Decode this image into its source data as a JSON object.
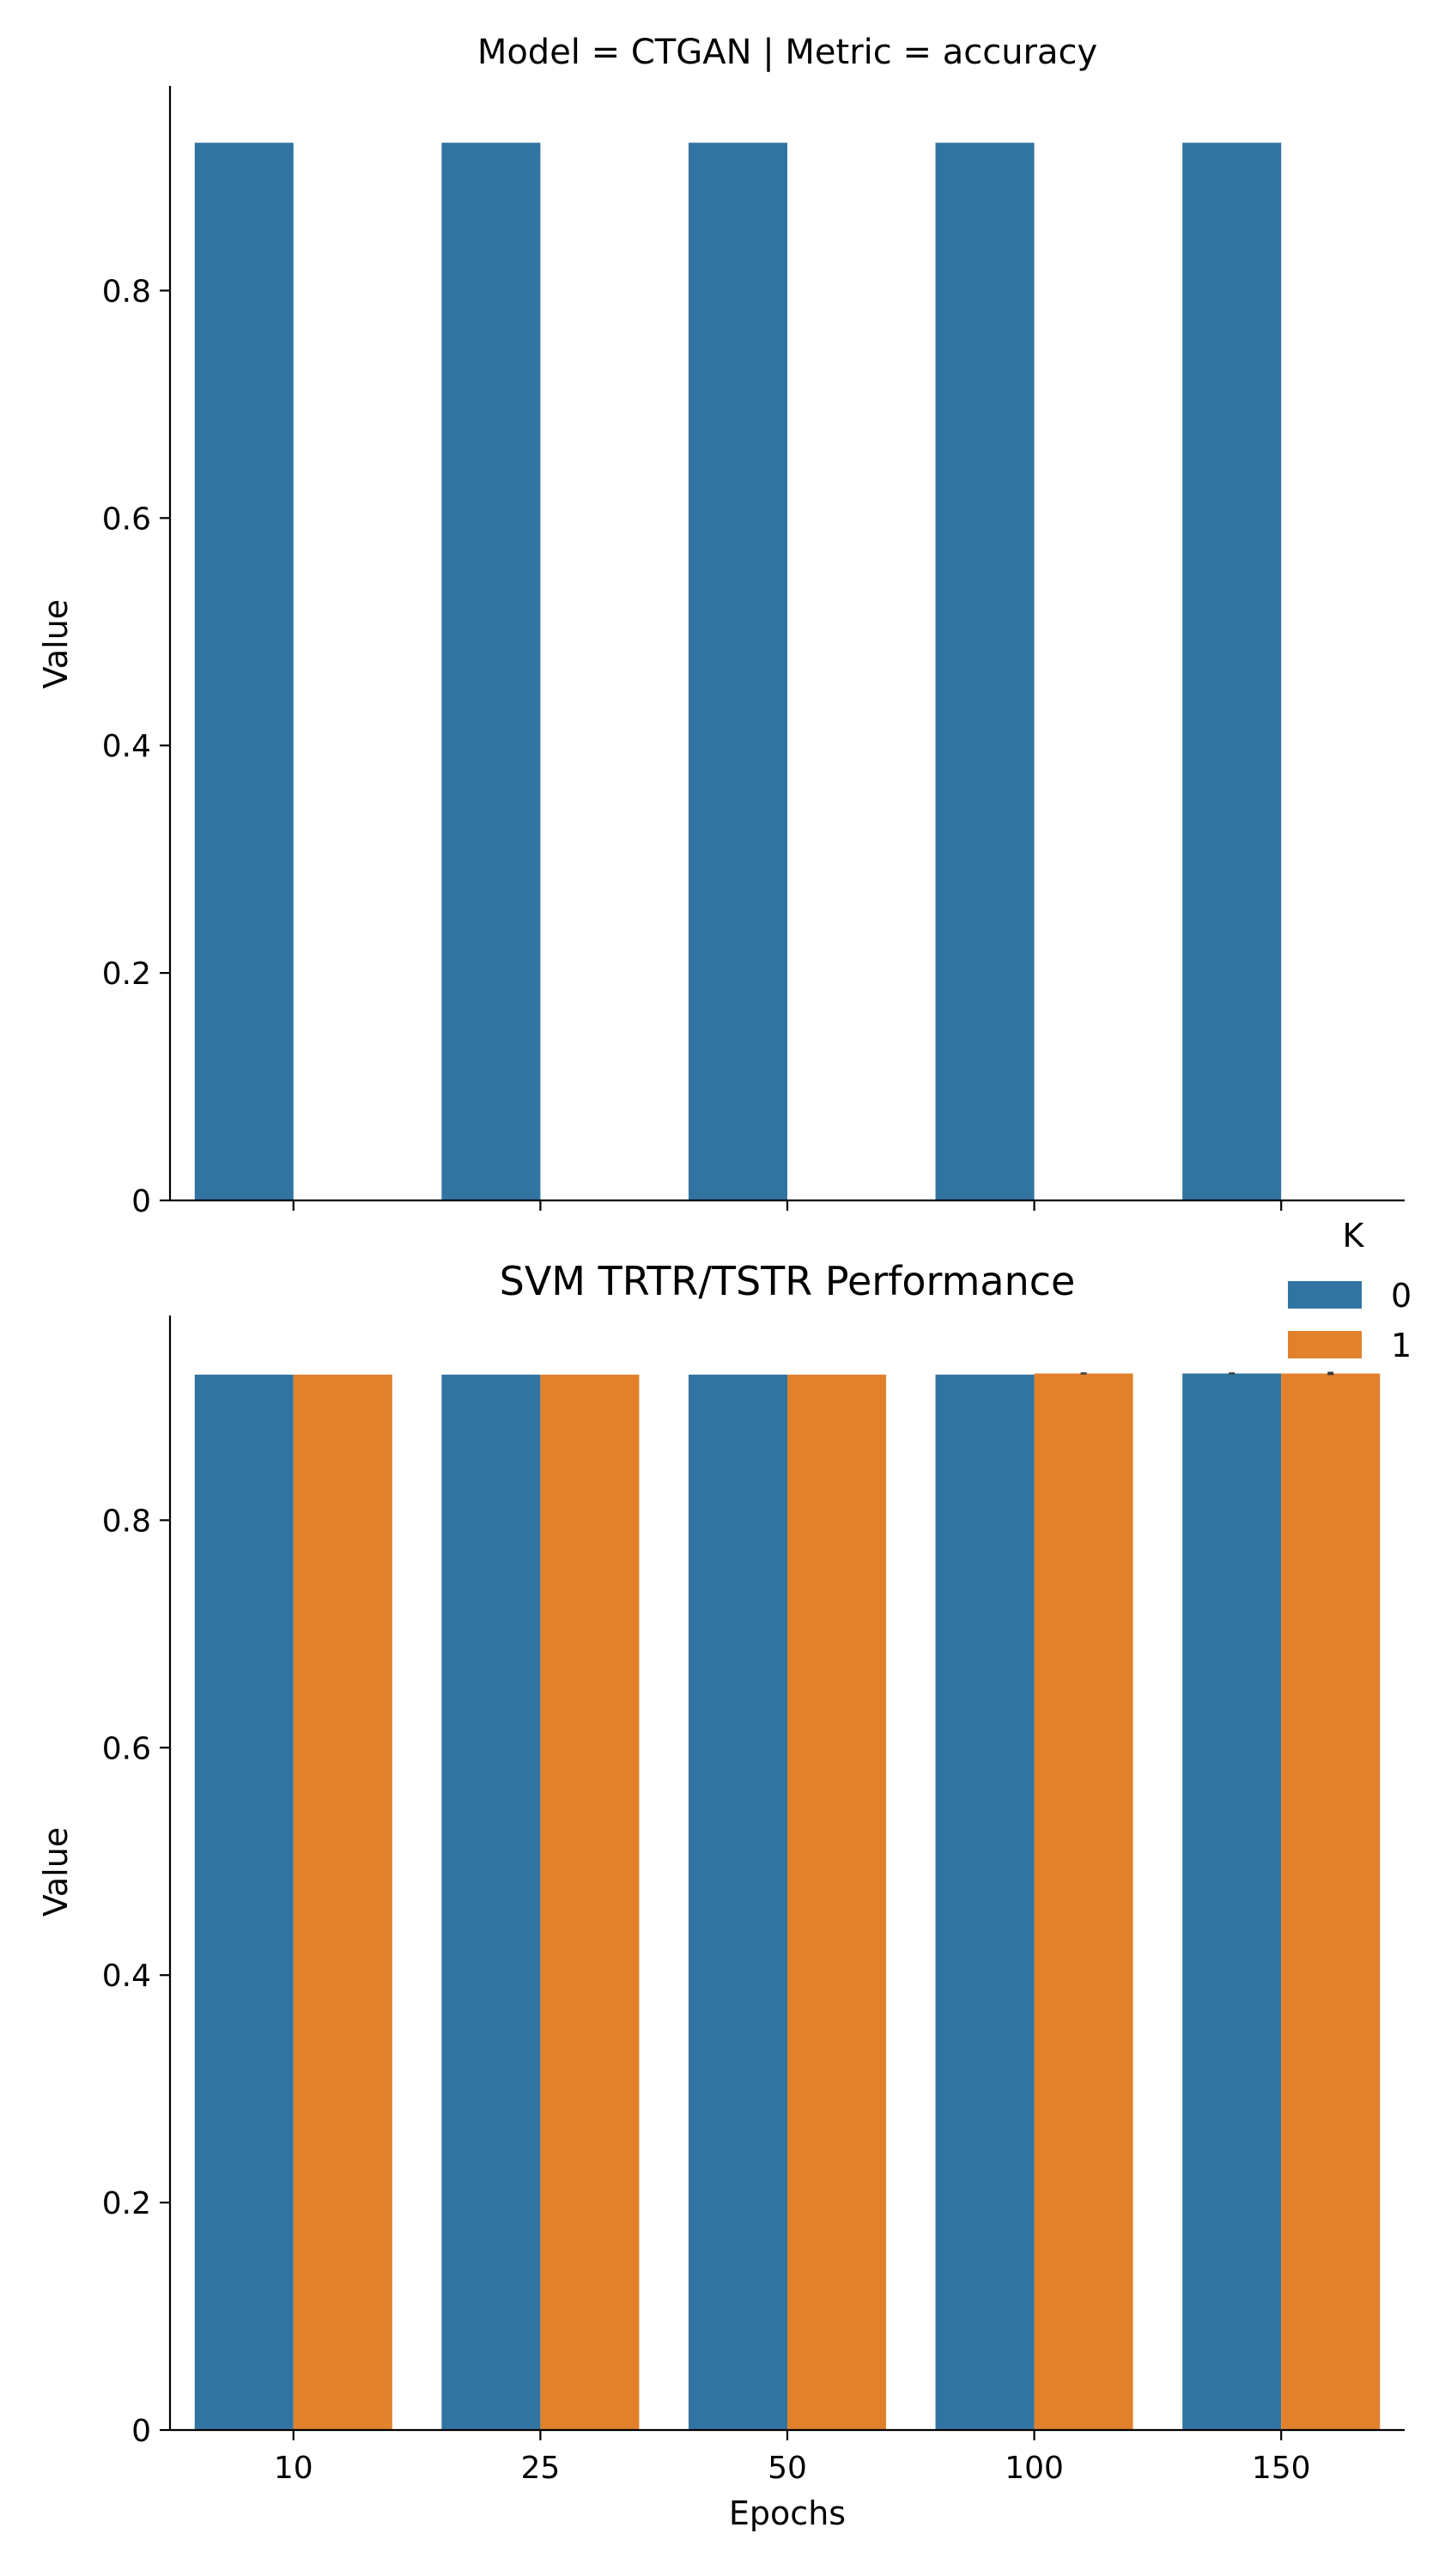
{
  "chart_data": [
    {
      "type": "bar",
      "title": "Model = CTGAN | Metric = accuracy",
      "xlabel": "",
      "ylabel": "Value",
      "ylim": [
        0,
        0.98
      ],
      "yticks": [
        0.0,
        0.2,
        0.4,
        0.6,
        0.8
      ],
      "categories": [
        "10",
        "25",
        "50",
        "100",
        "150"
      ],
      "show_xticklabels": false,
      "grid": false,
      "series": [
        {
          "name": "0",
          "color": "#3274a1",
          "values": [
            0.93,
            0.93,
            0.93,
            0.93,
            0.93
          ],
          "errors": [
            0,
            0,
            0,
            0,
            0
          ]
        }
      ]
    },
    {
      "type": "bar",
      "title": "SVM TRTR/TSTR Performance",
      "xlabel": "Epochs",
      "ylabel": "Value",
      "ylim": [
        0,
        0.98
      ],
      "yticks": [
        0.0,
        0.2,
        0.4,
        0.6,
        0.8
      ],
      "categories": [
        "10",
        "25",
        "50",
        "100",
        "150"
      ],
      "show_xticklabels": true,
      "grid": false,
      "series": [
        {
          "name": "0",
          "color": "#3274a1",
          "values": [
            0.928,
            0.928,
            0.928,
            0.928,
            0.929
          ],
          "errors": [
            0,
            0,
            0,
            0,
            0.001
          ]
        },
        {
          "name": "1",
          "color": "#e1812c",
          "values": [
            0.928,
            0.928,
            0.928,
            0.929,
            0.929
          ],
          "errors": [
            0,
            0,
            0,
            0.001,
            0.0015
          ]
        }
      ]
    }
  ],
  "legend": {
    "title": "K",
    "placement": "right",
    "entries": [
      {
        "label": "0",
        "color": "#3274a1"
      },
      {
        "label": "1",
        "color": "#e1812c"
      }
    ]
  }
}
